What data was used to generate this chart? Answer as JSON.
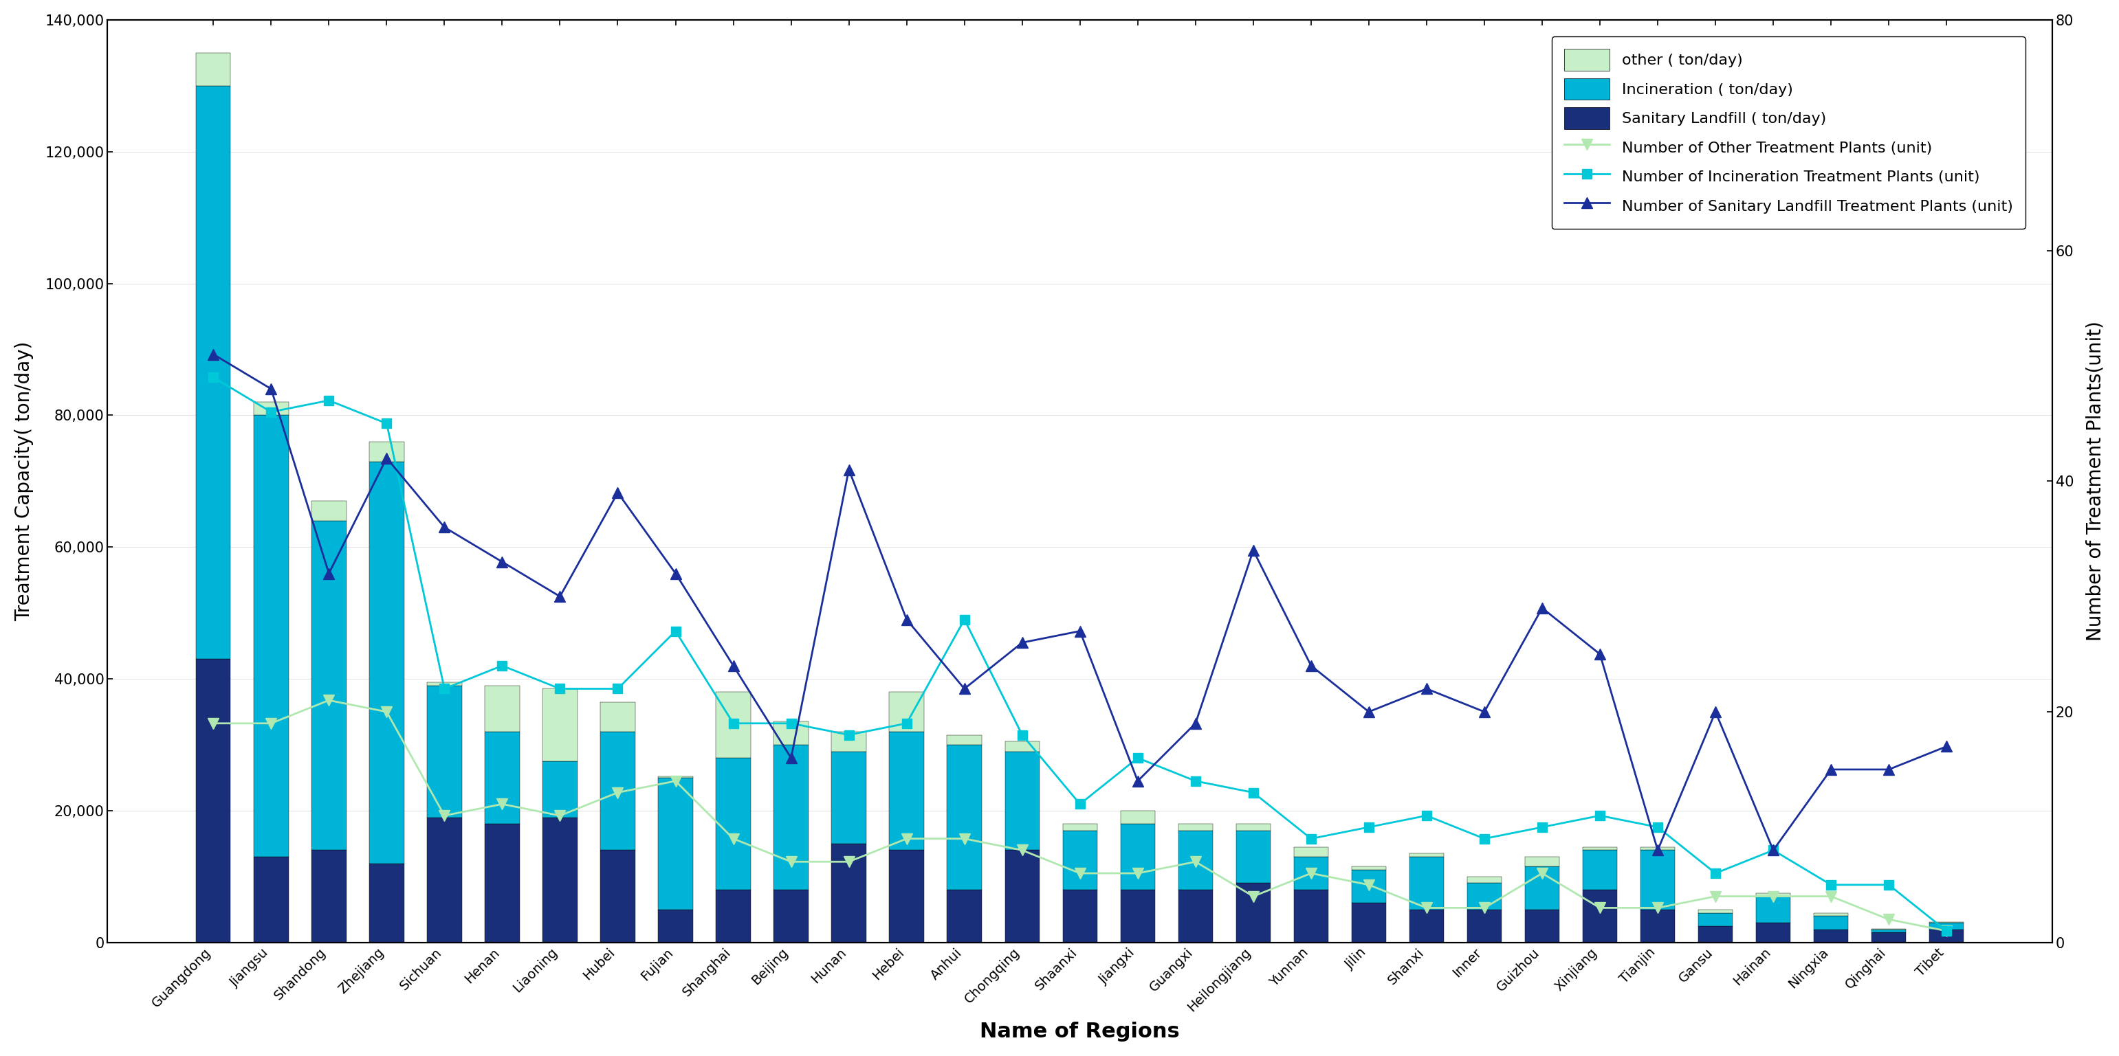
{
  "regions": [
    "Guangdong",
    "Jiangsu",
    "Shandong",
    "Zhejiang",
    "Sichuan",
    "Henan",
    "Liaoning",
    "Hubei",
    "Fujian",
    "Shanghai",
    "Beijing",
    "Hunan",
    "Hebei",
    "Anhui",
    "Chongqing",
    "Shaanxi",
    "Jiangxi",
    "Guangxi",
    "Heilongjiang",
    "Yunnan",
    "Jilin",
    "Shanxi",
    "Inner",
    "Guizhou",
    "Xinjiang",
    "Tianjin",
    "Gansu",
    "Hainan",
    "Ningxia",
    "Qinghai",
    "Tibet"
  ],
  "sanitary_landfill": [
    43000,
    13000,
    14000,
    12000,
    19000,
    18000,
    19000,
    14000,
    5000,
    8000,
    8000,
    15000,
    14000,
    8000,
    14000,
    8000,
    8000,
    8000,
    9000,
    8000,
    6000,
    5000,
    5000,
    5000,
    8000,
    5000,
    2500,
    3000,
    2000,
    1500,
    2000
  ],
  "incineration": [
    87000,
    67000,
    50000,
    61000,
    20000,
    14000,
    8500,
    18000,
    20000,
    20000,
    22000,
    14000,
    18000,
    22000,
    15000,
    9000,
    10000,
    9000,
    8000,
    5000,
    5000,
    8000,
    4000,
    6500,
    6000,
    9000,
    2000,
    4000,
    2000,
    500,
    1000
  ],
  "other": [
    5000,
    2000,
    3000,
    3000,
    500,
    7000,
    11000,
    4500,
    200,
    10000,
    3500,
    3000,
    6000,
    1500,
    1500,
    1000,
    2000,
    1000,
    1000,
    1500,
    500,
    500,
    1000,
    1500,
    500,
    500,
    500,
    500,
    500,
    100,
    100
  ],
  "num_sanitary": [
    51,
    48,
    32,
    42,
    36,
    33,
    30,
    39,
    32,
    24,
    16,
    41,
    28,
    22,
    26,
    27,
    14,
    19,
    34,
    24,
    20,
    22,
    20,
    29,
    25,
    8,
    20,
    8,
    15,
    15,
    17
  ],
  "num_incineration": [
    49,
    46,
    47,
    45,
    22,
    24,
    22,
    22,
    27,
    19,
    19,
    18,
    19,
    28,
    18,
    12,
    16,
    14,
    13,
    9,
    10,
    11,
    9,
    10,
    11,
    10,
    6,
    8,
    5,
    5,
    1
  ],
  "num_other": [
    19,
    19,
    21,
    20,
    11,
    12,
    11,
    13,
    14,
    9,
    7,
    7,
    9,
    9,
    8,
    6,
    6,
    7,
    4,
    6,
    5,
    3,
    3,
    6,
    3,
    3,
    4,
    4,
    4,
    2,
    1
  ],
  "color_sanitary": "#1a2f7a",
  "color_incineration": "#00b4d8",
  "color_other": "#c8f0c8",
  "color_line_sanitary": "#1a2f9a",
  "color_line_incineration": "#00c8d8",
  "color_line_other": "#b0e8b0",
  "ylabel_left": "Treatment Capacity( ton/day)",
  "ylabel_right": "Number of Treatment Plants(unit)",
  "xlabel": "Name of Regions",
  "ylim_left": [
    0,
    140000
  ],
  "ylim_right": [
    0,
    80
  ],
  "yticks_left": [
    0,
    20000,
    40000,
    60000,
    80000,
    100000,
    120000,
    140000
  ],
  "yticks_right": [
    0,
    20,
    40,
    60,
    80
  ],
  "legend_bar_other": "other ( ton/day)",
  "legend_bar_incineration": "Incineration ( ton/day)",
  "legend_bar_sanitary": "Sanitary Landfill ( ton/day)",
  "legend_line_other": "Number of Other Treatment Plants (unit)",
  "legend_line_incineration": "Number of Incineration Treatment Plants (unit)",
  "legend_line_sanitary": "Number of Sanitary Landfill Treatment Plants (unit)"
}
